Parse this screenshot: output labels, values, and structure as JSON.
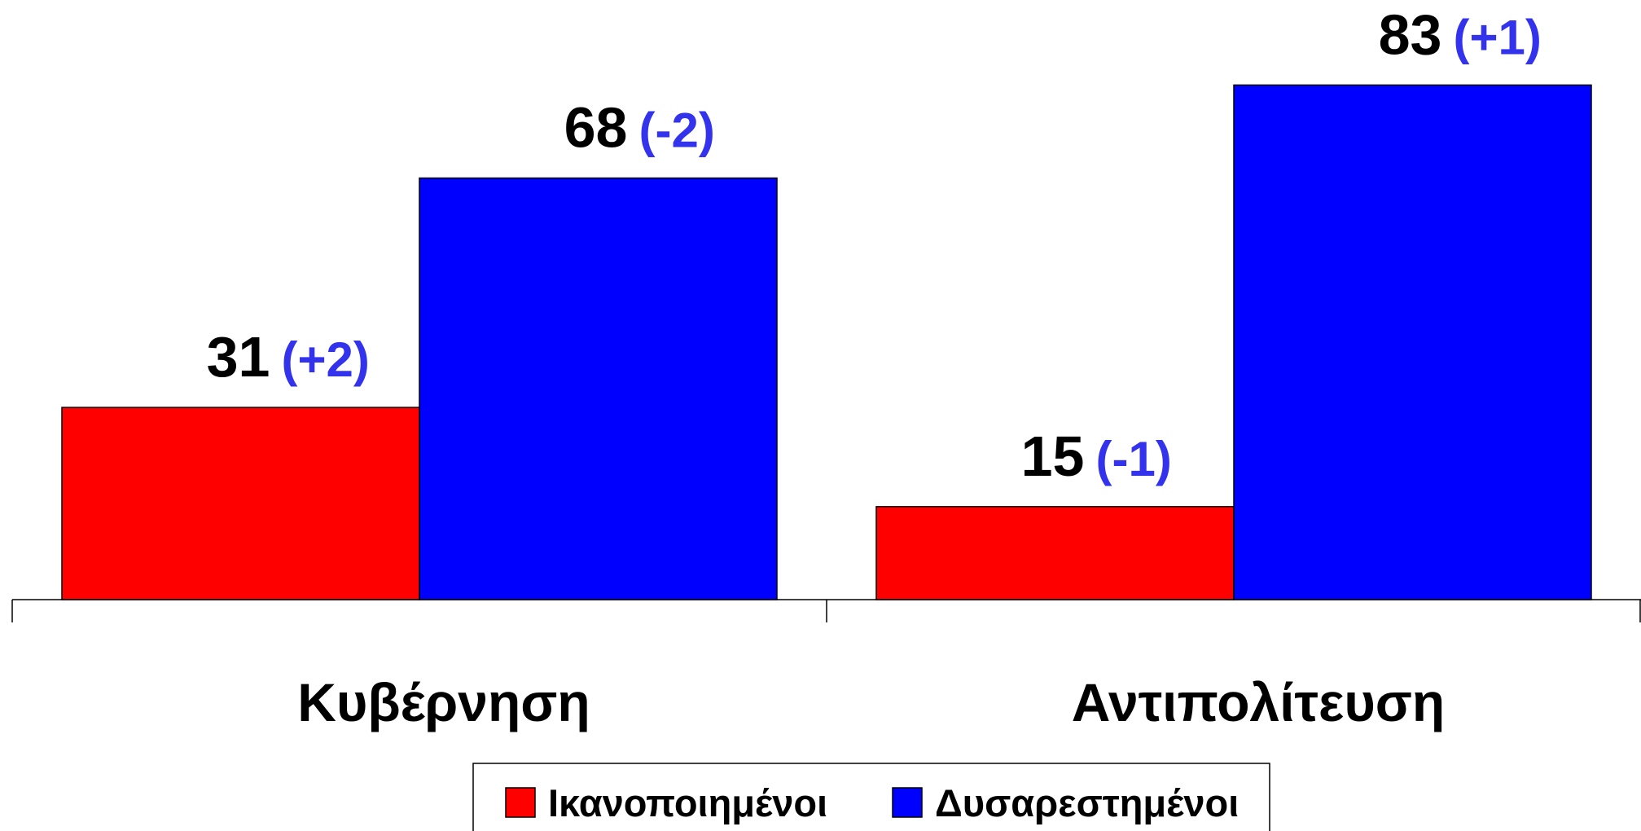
{
  "chart_data": {
    "type": "bar",
    "categories": [
      "Κυβέρνηση",
      "Αντιπολίτευση"
    ],
    "series": [
      {
        "name": "Ικανοποιημένοι",
        "color": "#ff0000",
        "values": [
          31,
          15
        ],
        "change_labels": [
          "(+2)",
          "(-1)"
        ]
      },
      {
        "name": "Δυσαρεστημένοι",
        "color": "#0000ff",
        "values": [
          68,
          83
        ],
        "change_labels": [
          "(-2)",
          "(+1)"
        ]
      }
    ],
    "ylim": [
      0,
      100
    ],
    "grid": false,
    "legend": "bottom"
  }
}
